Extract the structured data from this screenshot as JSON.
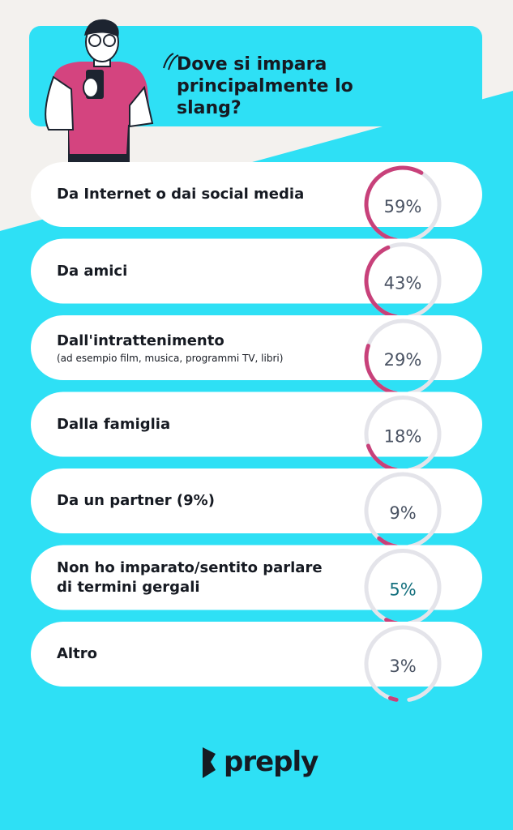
{
  "chart_data": {
    "type": "gauge",
    "title": "Dove si impara principalmente lo slang?",
    "categories": [
      "Da Internet o dai social media",
      "Da amici",
      "Dall'intrattenimento",
      "Dalla famiglia",
      "Da un partner (9%)",
      "Non ho imparato/sentito parlare di termini gergali",
      "Altro"
    ],
    "subtitles": [
      null,
      null,
      "(ad esempio film, musica, programmi TV, libri)",
      null,
      null,
      null,
      null
    ],
    "values": [
      59,
      43,
      29,
      18,
      9,
      5,
      3
    ],
    "value_labels": [
      "59%",
      "43%",
      "29%",
      "18%",
      "9%",
      "5%",
      "3%"
    ],
    "label_colors": [
      "#4a5363",
      "#4a5363",
      "#4a5363",
      "#4a5363",
      "#4a5363",
      "#14707e",
      "#4a5363"
    ],
    "color": "#c8417a",
    "ylim": [
      0,
      100
    ],
    "brand": "preply"
  }
}
